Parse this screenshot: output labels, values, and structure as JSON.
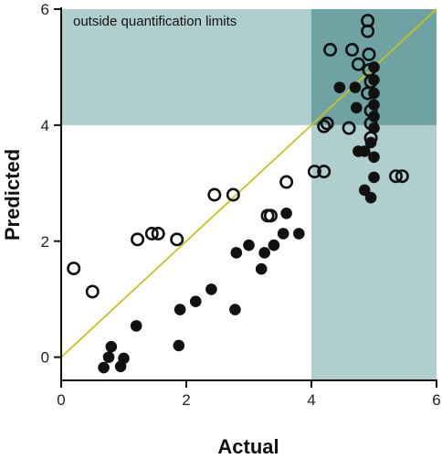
{
  "chart_data": {
    "type": "scatter",
    "title": "",
    "xlabel": "Actual",
    "ylabel": "Predicted",
    "xlim": [
      0,
      6
    ],
    "ylim": [
      -0.4,
      6
    ],
    "xticks": [
      "0",
      "2",
      "4",
      "6"
    ],
    "yticks": [
      "0",
      "2",
      "4",
      "6"
    ],
    "grid": false,
    "legend": "none",
    "annotation": "outside quantification limits",
    "quantification_limit": 4,
    "colors": {
      "shade_light": "#b0cece",
      "shade_dark": "#6fa3a3",
      "identity_line": "#c9c21a",
      "marker": "#111111"
    },
    "identity_line": {
      "x": [
        0,
        6
      ],
      "y": [
        0,
        6
      ]
    },
    "series": [
      {
        "marker": "filled-circle",
        "points": [
          [
            0.68,
            -0.18
          ],
          [
            0.76,
            0.0
          ],
          [
            0.8,
            0.18
          ],
          [
            0.95,
            -0.16
          ],
          [
            1.0,
            -0.02
          ],
          [
            1.2,
            0.54
          ],
          [
            1.88,
            0.2
          ],
          [
            1.9,
            0.82
          ],
          [
            2.15,
            0.96
          ],
          [
            2.4,
            1.17
          ],
          [
            2.78,
            0.82
          ],
          [
            2.8,
            1.8
          ],
          [
            3.0,
            1.93
          ],
          [
            3.2,
            1.52
          ],
          [
            3.25,
            1.8
          ],
          [
            3.4,
            1.93
          ],
          [
            3.55,
            2.13
          ],
          [
            3.6,
            2.48
          ],
          [
            3.8,
            2.13
          ],
          [
            4.45,
            4.65
          ],
          [
            4.7,
            4.65
          ],
          [
            4.72,
            4.3
          ],
          [
            4.75,
            3.55
          ],
          [
            4.85,
            3.55
          ],
          [
            4.85,
            2.88
          ],
          [
            4.95,
            3.7
          ],
          [
            4.95,
            2.75
          ],
          [
            5.0,
            5.0
          ],
          [
            5.0,
            4.78
          ],
          [
            5.0,
            4.55
          ],
          [
            5.0,
            4.35
          ],
          [
            5.0,
            4.15
          ],
          [
            5.0,
            3.95
          ],
          [
            5.0,
            3.45
          ],
          [
            5.0,
            3.1
          ]
        ]
      },
      {
        "marker": "open-circle",
        "points": [
          [
            0.2,
            1.53
          ],
          [
            0.5,
            1.13
          ],
          [
            1.22,
            2.03
          ],
          [
            1.45,
            2.13
          ],
          [
            1.55,
            2.13
          ],
          [
            1.85,
            2.03
          ],
          [
            2.45,
            2.8
          ],
          [
            2.75,
            2.8
          ],
          [
            3.3,
            2.44
          ],
          [
            3.35,
            2.44
          ],
          [
            3.6,
            3.02
          ],
          [
            4.05,
            3.2
          ],
          [
            4.2,
            3.2
          ],
          [
            4.2,
            3.98
          ],
          [
            4.25,
            4.03
          ],
          [
            4.3,
            5.3
          ],
          [
            4.6,
            3.95
          ],
          [
            4.65,
            5.3
          ],
          [
            4.75,
            5.05
          ],
          [
            4.9,
            5.8
          ],
          [
            4.9,
            5.62
          ],
          [
            4.92,
            5.22
          ],
          [
            4.92,
            4.95
          ],
          [
            4.95,
            4.75
          ],
          [
            4.9,
            4.55
          ],
          [
            4.95,
            4.25
          ],
          [
            4.95,
            4.03
          ],
          [
            4.95,
            3.78
          ],
          [
            5.35,
            3.12
          ],
          [
            5.45,
            3.12
          ]
        ]
      }
    ]
  }
}
